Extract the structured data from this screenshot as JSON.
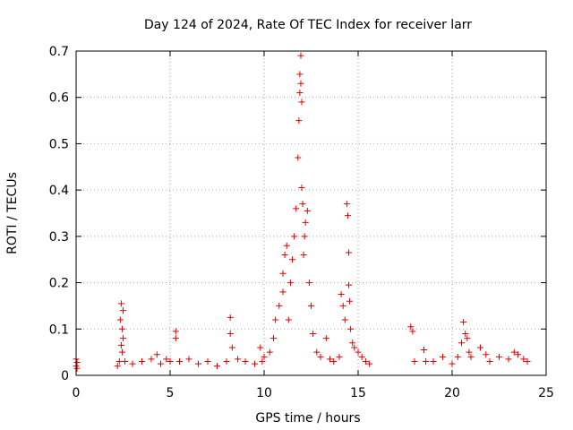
{
  "chart_data": {
    "type": "scatter",
    "title": "Day 124 of 2024, Rate Of TEC Index for receiver larr",
    "xlabel": "GPS time / hours",
    "ylabel": "ROTI / TECUs",
    "xlim": [
      0,
      25
    ],
    "ylim": [
      0,
      0.7
    ],
    "xticks": [
      0,
      5,
      10,
      15,
      20,
      25
    ],
    "yticks": [
      0,
      0.1,
      0.2,
      0.3,
      0.4,
      0.5,
      0.6,
      0.7
    ],
    "xtick_labels": [
      "0",
      "5",
      "10",
      "15",
      "20",
      "25"
    ],
    "ytick_labels": [
      "0",
      "0.1",
      "0.2",
      "0.3",
      "0.4",
      "0.5",
      "0.6",
      "0.7"
    ],
    "grid": true,
    "marker": "+",
    "color": "#e00000",
    "series": [
      {
        "name": "ROTI",
        "x": [
          0.0,
          0.0,
          0.05,
          0.05,
          2.2,
          2.3,
          2.35,
          2.4,
          2.45,
          2.5,
          2.4,
          2.45,
          2.5,
          2.6,
          3.0,
          3.5,
          4.0,
          4.3,
          4.5,
          4.8,
          5.0,
          5.3,
          5.3,
          5.5,
          6.0,
          6.5,
          7.0,
          7.5,
          8.0,
          8.2,
          8.2,
          8.3,
          8.6,
          9.0,
          9.5,
          9.8,
          9.9,
          10.0,
          10.3,
          10.5,
          10.6,
          10.8,
          11.0,
          11.0,
          11.1,
          11.2,
          11.3,
          11.4,
          11.5,
          11.6,
          11.7,
          11.8,
          11.85,
          11.9,
          11.9,
          11.95,
          11.95,
          12.0,
          12.0,
          12.05,
          12.1,
          12.15,
          12.2,
          12.3,
          12.4,
          12.5,
          12.6,
          12.8,
          13.0,
          13.3,
          13.5,
          13.7,
          14.0,
          14.1,
          14.2,
          14.3,
          14.4,
          14.45,
          14.5,
          14.5,
          14.55,
          14.6,
          14.7,
          14.8,
          15.0,
          15.2,
          15.4,
          15.6,
          17.8,
          17.9,
          18.0,
          18.5,
          18.6,
          19.0,
          19.5,
          20.0,
          20.3,
          20.5,
          20.6,
          20.7,
          20.8,
          20.9,
          21.0,
          21.5,
          21.8,
          22.0,
          22.5,
          23.0,
          23.3,
          23.5,
          23.8,
          24.0
        ],
        "y": [
          0.02,
          0.035,
          0.015,
          0.028,
          0.02,
          0.03,
          0.12,
          0.155,
          0.1,
          0.14,
          0.065,
          0.05,
          0.08,
          0.03,
          0.025,
          0.03,
          0.035,
          0.045,
          0.025,
          0.035,
          0.03,
          0.095,
          0.08,
          0.03,
          0.035,
          0.025,
          0.03,
          0.02,
          0.03,
          0.125,
          0.09,
          0.06,
          0.035,
          0.03,
          0.025,
          0.06,
          0.03,
          0.04,
          0.05,
          0.08,
          0.12,
          0.15,
          0.18,
          0.22,
          0.26,
          0.28,
          0.12,
          0.2,
          0.25,
          0.3,
          0.36,
          0.47,
          0.55,
          0.61,
          0.65,
          0.69,
          0.63,
          0.59,
          0.405,
          0.37,
          0.26,
          0.3,
          0.33,
          0.355,
          0.2,
          0.15,
          0.09,
          0.05,
          0.04,
          0.08,
          0.035,
          0.03,
          0.04,
          0.175,
          0.15,
          0.12,
          0.37,
          0.345,
          0.265,
          0.195,
          0.16,
          0.1,
          0.07,
          0.06,
          0.05,
          0.04,
          0.03,
          0.025,
          0.105,
          0.095,
          0.03,
          0.055,
          0.03,
          0.03,
          0.04,
          0.025,
          0.04,
          0.07,
          0.115,
          0.09,
          0.08,
          0.05,
          0.04,
          0.06,
          0.045,
          0.03,
          0.04,
          0.035,
          0.05,
          0.045,
          0.035,
          0.03
        ]
      }
    ]
  }
}
